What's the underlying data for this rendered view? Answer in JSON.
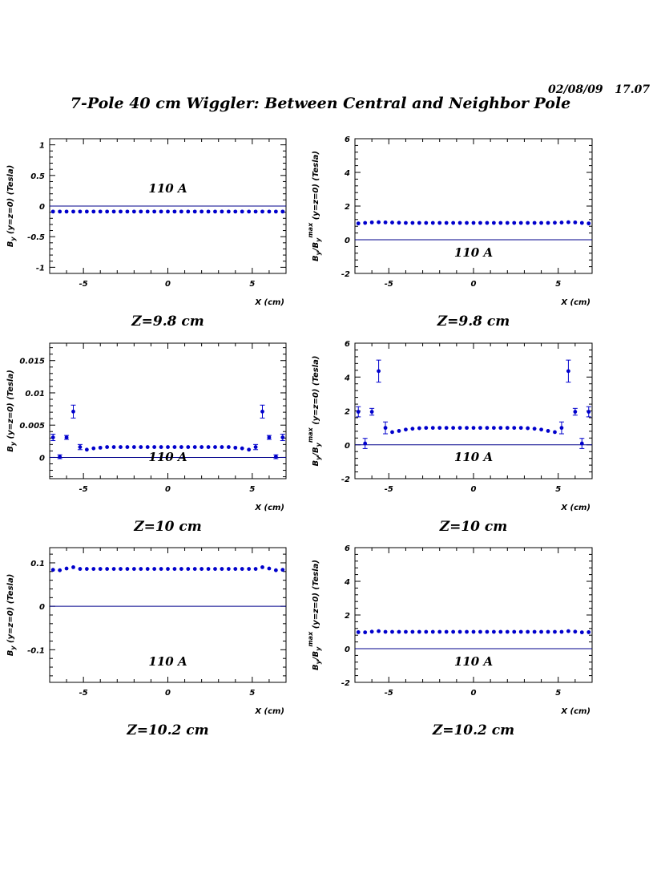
{
  "header": {
    "timestamp": "02/08/09   17.07",
    "title": "7-Pole 40 cm Wiggler: Between Central and Neighbor Pole"
  },
  "colors": {
    "marker": "#0000cc",
    "reference_line": "#00008b",
    "axis": "#000000"
  },
  "chart_data": [
    {
      "type": "scatter",
      "id": "by_z9_8",
      "caption": "Z=9.8 cm",
      "annotation": "110 A",
      "xlabel": "X (cm)",
      "ylabel": "B_y (y=z=0) (Tesla)",
      "xlim": [
        -7,
        7
      ],
      "ylim": [
        -1.1,
        1.1
      ],
      "xticks": [
        -5,
        0,
        5
      ],
      "yticks": [
        -1,
        -0.5,
        0,
        0.5,
        1
      ],
      "ytick_labels": [
        "-1",
        "-0.5",
        "0",
        "0.5",
        "1"
      ],
      "reference_line_y": 0,
      "series": [
        {
          "x": [
            -6.8,
            -6.4,
            -6.0,
            -5.6,
            -5.2,
            -4.8,
            -4.4,
            -4.0,
            -3.6,
            -3.2,
            -2.8,
            -2.4,
            -2.0,
            -1.6,
            -1.2,
            -0.8,
            -0.4,
            0.0,
            0.4,
            0.8,
            1.2,
            1.6,
            2.0,
            2.4,
            2.8,
            3.2,
            3.6,
            4.0,
            4.4,
            4.8,
            5.2,
            5.6,
            6.0,
            6.4,
            6.8
          ],
          "y": [
            -0.09,
            -0.09,
            -0.09,
            -0.09,
            -0.09,
            -0.09,
            -0.09,
            -0.09,
            -0.09,
            -0.09,
            -0.09,
            -0.09,
            -0.09,
            -0.09,
            -0.09,
            -0.09,
            -0.09,
            -0.09,
            -0.09,
            -0.09,
            -0.09,
            -0.09,
            -0.09,
            -0.09,
            -0.09,
            -0.09,
            -0.09,
            -0.09,
            -0.09,
            -0.09,
            -0.09,
            -0.09,
            -0.09,
            -0.09,
            -0.09
          ],
          "err": []
        }
      ]
    },
    {
      "type": "scatter",
      "id": "ratio_z9_8",
      "caption": "Z=9.8 cm",
      "annotation": "110 A",
      "xlabel": "X (cm)",
      "ylabel": "B_y/B_y^max (y=z=0) (Tesla)",
      "xlim": [
        -7,
        7
      ],
      "ylim": [
        -2,
        6
      ],
      "xticks": [
        -5,
        0,
        5
      ],
      "yticks": [
        -2,
        0,
        2,
        4,
        6
      ],
      "ytick_labels": [
        "-2",
        "0",
        "2",
        "4",
        "6"
      ],
      "reference_line_y": 0,
      "series": [
        {
          "x": [
            -6.8,
            -6.4,
            -6.0,
            -5.6,
            -5.2,
            -4.8,
            -4.4,
            -4.0,
            -3.6,
            -3.2,
            -2.8,
            -2.4,
            -2.0,
            -1.6,
            -1.2,
            -0.8,
            -0.4,
            0.0,
            0.4,
            0.8,
            1.2,
            1.6,
            2.0,
            2.4,
            2.8,
            3.2,
            3.6,
            4.0,
            4.4,
            4.8,
            5.2,
            5.6,
            6.0,
            6.4,
            6.8
          ],
          "y": [
            0.97,
            1.0,
            1.03,
            1.04,
            1.03,
            1.02,
            1.01,
            1.0,
            1.0,
            1.0,
            1.0,
            1.0,
            1.0,
            1.0,
            1.0,
            1.0,
            1.0,
            1.0,
            1.0,
            1.0,
            1.0,
            1.0,
            1.0,
            1.0,
            1.0,
            1.0,
            1.0,
            1.0,
            1.0,
            1.01,
            1.02,
            1.04,
            1.03,
            1.0,
            0.97
          ],
          "err": []
        }
      ]
    },
    {
      "type": "scatter",
      "id": "by_z10",
      "caption": "Z=10 cm",
      "annotation": "110 A",
      "xlabel": "X (cm)",
      "ylabel": "B_y (y=z=0) (Tesla)",
      "xlim": [
        -7,
        7
      ],
      "ylim": [
        -0.0033,
        0.0177
      ],
      "xticks": [
        -5,
        0,
        5
      ],
      "yticks": [
        0,
        0.005,
        0.01,
        0.015
      ],
      "ytick_labels": [
        "0",
        "0.005",
        "0.01",
        "0.015"
      ],
      "reference_line_y": 0,
      "series": [
        {
          "x": [
            -6.8,
            -6.4,
            -6.0,
            -5.6,
            -5.2,
            -4.8,
            -4.4,
            -4.0,
            -3.6,
            -3.2,
            -2.8,
            -2.4,
            -2.0,
            -1.6,
            -1.2,
            -0.8,
            -0.4,
            0.0,
            0.4,
            0.8,
            1.2,
            1.6,
            2.0,
            2.4,
            2.8,
            3.2,
            3.6,
            4.0,
            4.4,
            4.8,
            5.2,
            5.6,
            6.0,
            6.4,
            6.8
          ],
          "y": [
            0.0031,
            0.0001,
            0.0031,
            0.0071,
            0.0016,
            0.0012,
            0.0014,
            0.0015,
            0.0016,
            0.0016,
            0.0016,
            0.0016,
            0.0016,
            0.0016,
            0.0016,
            0.0016,
            0.0016,
            0.0016,
            0.0016,
            0.0016,
            0.0016,
            0.0016,
            0.0016,
            0.0016,
            0.0016,
            0.0016,
            0.0016,
            0.0015,
            0.0014,
            0.0012,
            0.0016,
            0.0071,
            0.0031,
            0.0001,
            0.0031
          ],
          "err": [
            0.0005,
            0.0003,
            0.0003,
            0.001,
            0.0004,
            0,
            0,
            0,
            0,
            0,
            0,
            0,
            0,
            0,
            0,
            0,
            0,
            0,
            0,
            0,
            0,
            0,
            0,
            0,
            0,
            0,
            0,
            0,
            0,
            0,
            0.0004,
            0.001,
            0.0003,
            0.0003,
            0.0005
          ]
        }
      ]
    },
    {
      "type": "scatter",
      "id": "ratio_z10",
      "caption": "Z=10 cm",
      "annotation": "110 A",
      "xlabel": "X (cm)",
      "ylabel": "B_y/B_y^max (y=z=0) (Tesla)",
      "xlim": [
        -7,
        7
      ],
      "ylim": [
        -2,
        6
      ],
      "xticks": [
        -5,
        0,
        5
      ],
      "yticks": [
        -2,
        0,
        2,
        4,
        6
      ],
      "ytick_labels": [
        "-2",
        "0",
        "2",
        "4",
        "6"
      ],
      "reference_line_y": 0,
      "series": [
        {
          "x": [
            -6.8,
            -6.4,
            -6.0,
            -5.6,
            -5.2,
            -4.8,
            -4.4,
            -4.0,
            -3.6,
            -3.2,
            -2.8,
            -2.4,
            -2.0,
            -1.6,
            -1.2,
            -0.8,
            -0.4,
            0.0,
            0.4,
            0.8,
            1.2,
            1.6,
            2.0,
            2.4,
            2.8,
            3.2,
            3.6,
            4.0,
            4.4,
            4.8,
            5.2,
            5.6,
            6.0,
            6.4,
            6.8
          ],
          "y": [
            1.95,
            0.08,
            1.95,
            4.35,
            1.0,
            0.75,
            0.82,
            0.9,
            0.95,
            0.98,
            1.0,
            1.0,
            1.0,
            1.0,
            1.0,
            1.0,
            1.0,
            1.0,
            1.0,
            1.0,
            1.0,
            1.0,
            1.0,
            1.0,
            1.0,
            0.98,
            0.95,
            0.9,
            0.82,
            0.75,
            1.0,
            4.35,
            1.95,
            0.08,
            1.95
          ],
          "err": [
            0.3,
            0.3,
            0.2,
            0.65,
            0.35,
            0,
            0,
            0,
            0,
            0,
            0,
            0,
            0,
            0,
            0,
            0,
            0,
            0,
            0,
            0,
            0,
            0,
            0,
            0,
            0,
            0,
            0,
            0,
            0,
            0,
            0.35,
            0.65,
            0.2,
            0.3,
            0.3
          ]
        }
      ]
    },
    {
      "type": "scatter",
      "id": "by_z10_2",
      "caption": "Z=10.2 cm",
      "annotation": "110 A",
      "xlabel": "X (cm)",
      "ylabel": "B_y (y=z=0) (Tesla)",
      "xlim": [
        -7,
        7
      ],
      "ylim": [
        -0.175,
        0.135
      ],
      "xticks": [
        -5,
        0,
        5
      ],
      "yticks": [
        -0.1,
        0,
        0.1
      ],
      "ytick_labels": [
        "-0.1",
        "0",
        "0.1"
      ],
      "reference_line_y": 0,
      "series": [
        {
          "x": [
            -6.8,
            -6.4,
            -6.0,
            -5.6,
            -5.2,
            -4.8,
            -4.4,
            -4.0,
            -3.6,
            -3.2,
            -2.8,
            -2.4,
            -2.0,
            -1.6,
            -1.2,
            -0.8,
            -0.4,
            0.0,
            0.4,
            0.8,
            1.2,
            1.6,
            2.0,
            2.4,
            2.8,
            3.2,
            3.6,
            4.0,
            4.4,
            4.8,
            5.2,
            5.6,
            6.0,
            6.4,
            6.8
          ],
          "y": [
            0.084,
            0.083,
            0.087,
            0.09,
            0.086,
            0.086,
            0.086,
            0.086,
            0.086,
            0.086,
            0.086,
            0.086,
            0.086,
            0.086,
            0.086,
            0.086,
            0.086,
            0.086,
            0.086,
            0.086,
            0.086,
            0.086,
            0.086,
            0.086,
            0.086,
            0.086,
            0.086,
            0.086,
            0.086,
            0.086,
            0.086,
            0.09,
            0.087,
            0.083,
            0.084
          ],
          "err": []
        }
      ]
    },
    {
      "type": "scatter",
      "id": "ratio_z10_2",
      "caption": "Z=10.2 cm",
      "annotation": "110 A",
      "xlabel": "X (cm)",
      "ylabel": "B_y/B_y^max (y=z=0) (Tesla)",
      "xlim": [
        -7,
        7
      ],
      "ylim": [
        -2,
        6
      ],
      "xticks": [
        -5,
        0,
        5
      ],
      "yticks": [
        -2,
        0,
        2,
        4,
        6
      ],
      "ytick_labels": [
        "-2",
        "0",
        "2",
        "4",
        "6"
      ],
      "reference_line_y": 0,
      "series": [
        {
          "x": [
            -6.8,
            -6.4,
            -6.0,
            -5.6,
            -5.2,
            -4.8,
            -4.4,
            -4.0,
            -3.6,
            -3.2,
            -2.8,
            -2.4,
            -2.0,
            -1.6,
            -1.2,
            -0.8,
            -0.4,
            0.0,
            0.4,
            0.8,
            1.2,
            1.6,
            2.0,
            2.4,
            2.8,
            3.2,
            3.6,
            4.0,
            4.4,
            4.8,
            5.2,
            5.6,
            6.0,
            6.4,
            6.8
          ],
          "y": [
            0.98,
            0.97,
            1.01,
            1.04,
            1.0,
            1.0,
            1.0,
            1.0,
            1.0,
            1.0,
            1.0,
            1.0,
            1.0,
            1.0,
            1.0,
            1.0,
            1.0,
            1.0,
            1.0,
            1.0,
            1.0,
            1.0,
            1.0,
            1.0,
            1.0,
            1.0,
            1.0,
            1.0,
            1.0,
            1.0,
            1.0,
            1.04,
            1.01,
            0.97,
            0.98
          ],
          "err": []
        }
      ]
    }
  ]
}
